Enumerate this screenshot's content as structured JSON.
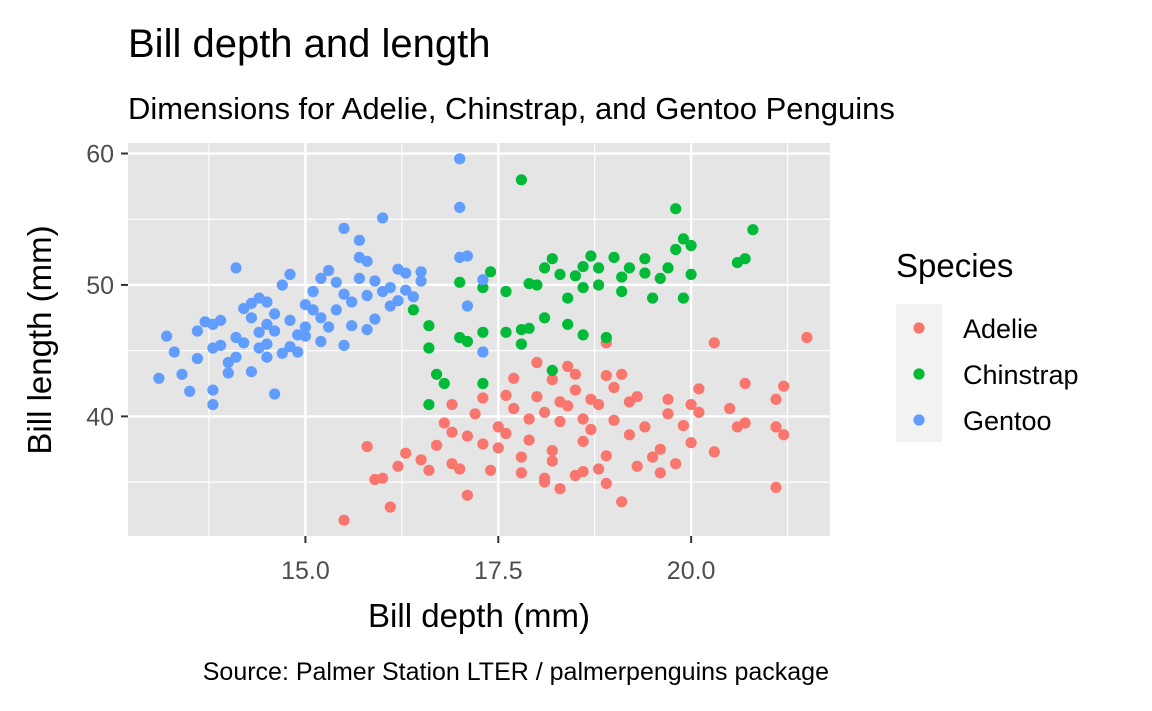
{
  "colors": {
    "panel_bg": "#e5e5e5",
    "grid": "#ffffff",
    "Adelie": "#f8766d",
    "Chinstrap": "#00ba38",
    "Gentoo": "#619cff"
  },
  "chart_data": {
    "type": "scatter",
    "title": "Bill depth and length",
    "subtitle": "Dimensions for Adelie, Chinstrap, and Gentoo Penguins",
    "caption": "Source: Palmer Station LTER / palmerpenguins package",
    "xlabel": "Bill depth (mm)",
    "ylabel": "Bill length (mm)",
    "xlim": [
      12.7,
      21.8
    ],
    "ylim": [
      30.9,
      60.8
    ],
    "x_ticks": [
      15.0,
      17.5,
      20.0
    ],
    "x_tick_labels": [
      "15.0",
      "17.5",
      "20.0"
    ],
    "y_ticks": [
      40,
      50,
      60
    ],
    "y_tick_labels": [
      "40",
      "50",
      "60"
    ],
    "grid": true,
    "legend": {
      "title": "Species",
      "position": "right"
    },
    "series": [
      {
        "name": "Adelie",
        "points": [
          [
            15.5,
            32.1
          ],
          [
            16.1,
            33.1
          ],
          [
            17.1,
            34.0
          ],
          [
            18.3,
            34.5
          ],
          [
            19.1,
            33.5
          ],
          [
            21.1,
            34.6
          ],
          [
            15.9,
            35.2
          ],
          [
            16.2,
            36.2
          ],
          [
            16.0,
            35.3
          ],
          [
            16.6,
            35.9
          ],
          [
            16.9,
            36.4
          ],
          [
            17.4,
            35.9
          ],
          [
            17.8,
            35.7
          ],
          [
            18.1,
            35.3
          ],
          [
            18.5,
            35.5
          ],
          [
            18.9,
            34.9
          ],
          [
            19.3,
            36.2
          ],
          [
            19.6,
            35.7
          ],
          [
            15.8,
            37.7
          ],
          [
            16.3,
            37.2
          ],
          [
            16.7,
            37.8
          ],
          [
            17.1,
            38.5
          ],
          [
            17.5,
            37.6
          ],
          [
            17.9,
            38.2
          ],
          [
            18.2,
            37.4
          ],
          [
            18.6,
            38.1
          ],
          [
            18.9,
            37.0
          ],
          [
            19.2,
            38.6
          ],
          [
            19.6,
            37.5
          ],
          [
            20.0,
            38.0
          ],
          [
            20.3,
            37.3
          ],
          [
            20.7,
            39.5
          ],
          [
            21.1,
            39.2
          ],
          [
            21.2,
            38.6
          ],
          [
            16.8,
            39.5
          ],
          [
            17.2,
            40.2
          ],
          [
            17.5,
            39.2
          ],
          [
            17.7,
            40.6
          ],
          [
            17.9,
            39.8
          ],
          [
            18.1,
            40.3
          ],
          [
            18.3,
            39.6
          ],
          [
            18.4,
            40.8
          ],
          [
            18.6,
            39.8
          ],
          [
            18.8,
            40.9
          ],
          [
            19.0,
            39.7
          ],
          [
            19.2,
            41.1
          ],
          [
            19.4,
            39.2
          ],
          [
            19.7,
            40.2
          ],
          [
            20.0,
            40.9
          ],
          [
            20.1,
            40.3
          ],
          [
            16.9,
            40.9
          ],
          [
            17.3,
            41.4
          ],
          [
            17.6,
            41.6
          ],
          [
            18.0,
            41.5
          ],
          [
            18.3,
            41.1
          ],
          [
            18.5,
            42.0
          ],
          [
            18.7,
            41.3
          ],
          [
            19.0,
            42.2
          ],
          [
            19.3,
            41.5
          ],
          [
            19.7,
            41.3
          ],
          [
            20.1,
            42.1
          ],
          [
            20.7,
            42.5
          ],
          [
            21.2,
            42.3
          ],
          [
            17.7,
            42.9
          ],
          [
            18.2,
            42.8
          ],
          [
            18.5,
            43.2
          ],
          [
            18.9,
            43.1
          ],
          [
            19.1,
            43.2
          ],
          [
            18.0,
            44.1
          ],
          [
            18.9,
            45.6
          ],
          [
            20.3,
            45.6
          ],
          [
            21.5,
            46.0
          ],
          [
            21.1,
            41.3
          ],
          [
            18.4,
            43.8
          ],
          [
            17.6,
            38.7
          ],
          [
            18.2,
            36.6
          ],
          [
            18.8,
            36.0
          ],
          [
            19.5,
            36.9
          ],
          [
            16.5,
            36.7
          ],
          [
            17.0,
            36.0
          ],
          [
            17.3,
            37.9
          ],
          [
            18.7,
            39.0
          ],
          [
            19.9,
            39.3
          ],
          [
            20.5,
            40.6
          ],
          [
            17.8,
            36.9
          ],
          [
            16.9,
            38.8
          ],
          [
            18.1,
            35.0
          ],
          [
            18.6,
            35.8
          ],
          [
            19.8,
            36.4
          ],
          [
            20.6,
            39.2
          ]
        ]
      },
      {
        "name": "Chinstrap",
        "points": [
          [
            16.4,
            48.1
          ],
          [
            16.6,
            46.9
          ],
          [
            16.6,
            45.2
          ],
          [
            16.7,
            43.2
          ],
          [
            16.8,
            42.5
          ],
          [
            16.6,
            40.9
          ],
          [
            17.0,
            46.0
          ],
          [
            17.1,
            45.7
          ],
          [
            17.3,
            46.4
          ],
          [
            17.3,
            49.8
          ],
          [
            17.3,
            42.5
          ],
          [
            17.6,
            46.4
          ],
          [
            17.6,
            49.5
          ],
          [
            17.8,
            46.6
          ],
          [
            17.9,
            46.7
          ],
          [
            17.8,
            45.5
          ],
          [
            17.9,
            50.1
          ],
          [
            17.8,
            58.0
          ],
          [
            18.0,
            50.0
          ],
          [
            18.1,
            51.3
          ],
          [
            18.2,
            52.0
          ],
          [
            18.3,
            50.8
          ],
          [
            18.1,
            47.5
          ],
          [
            18.4,
            49.0
          ],
          [
            18.5,
            50.7
          ],
          [
            18.6,
            51.4
          ],
          [
            18.6,
            49.8
          ],
          [
            18.7,
            52.2
          ],
          [
            18.8,
            51.3
          ],
          [
            18.8,
            50.0
          ],
          [
            18.9,
            46.0
          ],
          [
            19.0,
            52.1
          ],
          [
            19.1,
            50.6
          ],
          [
            19.1,
            49.5
          ],
          [
            19.2,
            51.3
          ],
          [
            19.4,
            50.9
          ],
          [
            19.5,
            49.0
          ],
          [
            19.6,
            50.5
          ],
          [
            19.7,
            51.3
          ],
          [
            19.8,
            52.7
          ],
          [
            19.9,
            53.5
          ],
          [
            19.9,
            49.0
          ],
          [
            20.0,
            50.8
          ],
          [
            20.0,
            53.0
          ],
          [
            19.8,
            55.8
          ],
          [
            20.6,
            51.7
          ],
          [
            20.7,
            52.0
          ],
          [
            20.8,
            54.2
          ],
          [
            18.2,
            43.5
          ],
          [
            17.4,
            51.0
          ],
          [
            18.6,
            46.2
          ],
          [
            19.4,
            52.0
          ],
          [
            17.0,
            50.2
          ],
          [
            18.4,
            47.0
          ]
        ]
      },
      {
        "name": "Gentoo",
        "points": [
          [
            13.1,
            42.9
          ],
          [
            13.2,
            46.1
          ],
          [
            13.3,
            44.9
          ],
          [
            13.4,
            43.2
          ],
          [
            13.5,
            41.9
          ],
          [
            13.6,
            46.5
          ],
          [
            13.6,
            44.4
          ],
          [
            13.7,
            47.2
          ],
          [
            13.8,
            45.2
          ],
          [
            13.8,
            42.0
          ],
          [
            13.8,
            40.9
          ],
          [
            13.9,
            45.4
          ],
          [
            13.9,
            47.3
          ],
          [
            14.0,
            44.1
          ],
          [
            14.0,
            43.3
          ],
          [
            14.1,
            46.0
          ],
          [
            14.1,
            44.5
          ],
          [
            14.2,
            48.2
          ],
          [
            14.2,
            45.6
          ],
          [
            14.3,
            47.5
          ],
          [
            14.3,
            43.4
          ],
          [
            14.4,
            46.4
          ],
          [
            14.4,
            45.2
          ],
          [
            14.5,
            47.0
          ],
          [
            14.5,
            45.5
          ],
          [
            14.5,
            48.7
          ],
          [
            14.6,
            46.5
          ],
          [
            14.7,
            50.0
          ],
          [
            14.8,
            45.3
          ],
          [
            14.8,
            47.3
          ],
          [
            14.9,
            46.2
          ],
          [
            15.0,
            48.5
          ],
          [
            15.0,
            46.8
          ],
          [
            15.1,
            49.5
          ],
          [
            15.2,
            47.5
          ],
          [
            15.2,
            50.5
          ],
          [
            15.3,
            46.8
          ],
          [
            15.4,
            48.1
          ],
          [
            15.5,
            49.3
          ],
          [
            15.5,
            45.4
          ],
          [
            15.6,
            48.7
          ],
          [
            15.7,
            50.5
          ],
          [
            15.7,
            52.1
          ],
          [
            15.8,
            46.6
          ],
          [
            15.8,
            49.2
          ],
          [
            15.9,
            50.3
          ],
          [
            16.0,
            49.5
          ],
          [
            16.0,
            55.1
          ],
          [
            16.1,
            49.8
          ],
          [
            16.2,
            48.8
          ],
          [
            16.3,
            50.9
          ],
          [
            16.4,
            49.1
          ],
          [
            16.5,
            50.3
          ],
          [
            14.6,
            41.7
          ],
          [
            15.5,
            54.3
          ],
          [
            15.7,
            53.4
          ],
          [
            14.5,
            44.5
          ],
          [
            15.0,
            46.1
          ],
          [
            16.3,
            49.6
          ],
          [
            14.8,
            50.8
          ],
          [
            17.0,
            59.6
          ],
          [
            17.0,
            55.9
          ],
          [
            17.0,
            52.1
          ],
          [
            17.1,
            52.2
          ],
          [
            17.1,
            48.4
          ],
          [
            17.3,
            50.4
          ],
          [
            17.3,
            44.9
          ],
          [
            15.3,
            51.1
          ],
          [
            16.5,
            51.0
          ],
          [
            14.1,
            51.3
          ],
          [
            15.8,
            51.8
          ],
          [
            15.1,
            48.1
          ],
          [
            14.9,
            44.9
          ],
          [
            14.3,
            48.6
          ],
          [
            15.9,
            47.4
          ],
          [
            15.4,
            50.2
          ],
          [
            14.7,
            44.8
          ],
          [
            16.2,
            51.2
          ],
          [
            13.8,
            47.0
          ],
          [
            15.6,
            46.9
          ],
          [
            15.2,
            45.7
          ],
          [
            14.4,
            49.0
          ],
          [
            16.1,
            48.4
          ],
          [
            14.6,
            47.8
          ]
        ]
      }
    ]
  }
}
